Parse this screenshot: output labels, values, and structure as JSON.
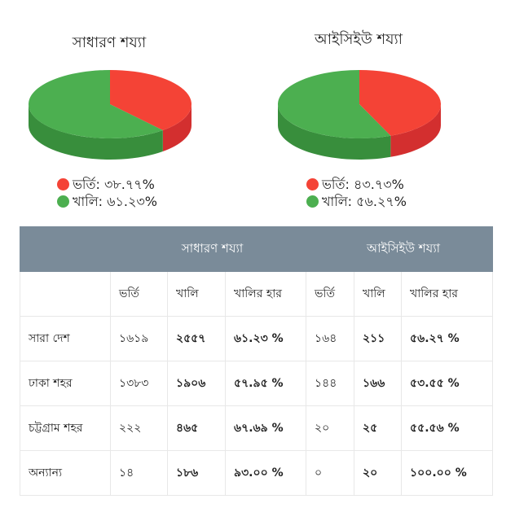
{
  "charts": [
    {
      "title": "সাধারণ শয্যা",
      "chart_data": {
        "type": "pie",
        "title": "সাধারণ শয্যা",
        "slices": [
          {
            "label": "ভর্তি",
            "display": "ভর্তি: ৩৮.৭৭%",
            "value": 38.77,
            "color": "#f44336"
          },
          {
            "label": "খালি",
            "display": "খালি: ৬১.২৩%",
            "value": 61.23,
            "color": "#4caf50"
          }
        ]
      }
    },
    {
      "title": "আইসিইউ শয্যা",
      "chart_data": {
        "type": "pie",
        "title": "আইসিইউ শয্যা",
        "slices": [
          {
            "label": "ভর্তি",
            "display": "ভর্তি: ৪৩.৭৩%",
            "value": 43.73,
            "color": "#f44336"
          },
          {
            "label": "খালি",
            "display": "খালি: ৫৬.২৭%",
            "value": 56.27,
            "color": "#4caf50"
          }
        ]
      }
    }
  ],
  "table": {
    "group_headers": [
      "সাধারণ শয্যা",
      "আইসিইউ শয্যা"
    ],
    "sub_headers": [
      "ভর্তি",
      "খালি",
      "খালির হার",
      "ভর্তি",
      "খালি",
      "খালির হার"
    ],
    "rows": [
      [
        "সারা দেশ",
        "১৬১৯",
        "২৫৫৭",
        "৬১.২৩ %",
        "১৬৪",
        "২১১",
        "৫৬.২৭ %"
      ],
      [
        "ঢাকা শহর",
        "১৩৮৩",
        "১৯০৬",
        "৫৭.৯৫ %",
        "১৪৪",
        "১৬৬",
        "৫৩.৫৫ %"
      ],
      [
        "চট্টগ্রাম শহর",
        "২২২",
        "৪৬৫",
        "৬৭.৬৯ %",
        "২০",
        "২৫",
        "৫৫.৫৬ %"
      ],
      [
        "অন্যান্য",
        "১৪",
        "১৮৬",
        "৯৩.০০ %",
        "০",
        "২০",
        "১০০.০০ %"
      ]
    ]
  }
}
